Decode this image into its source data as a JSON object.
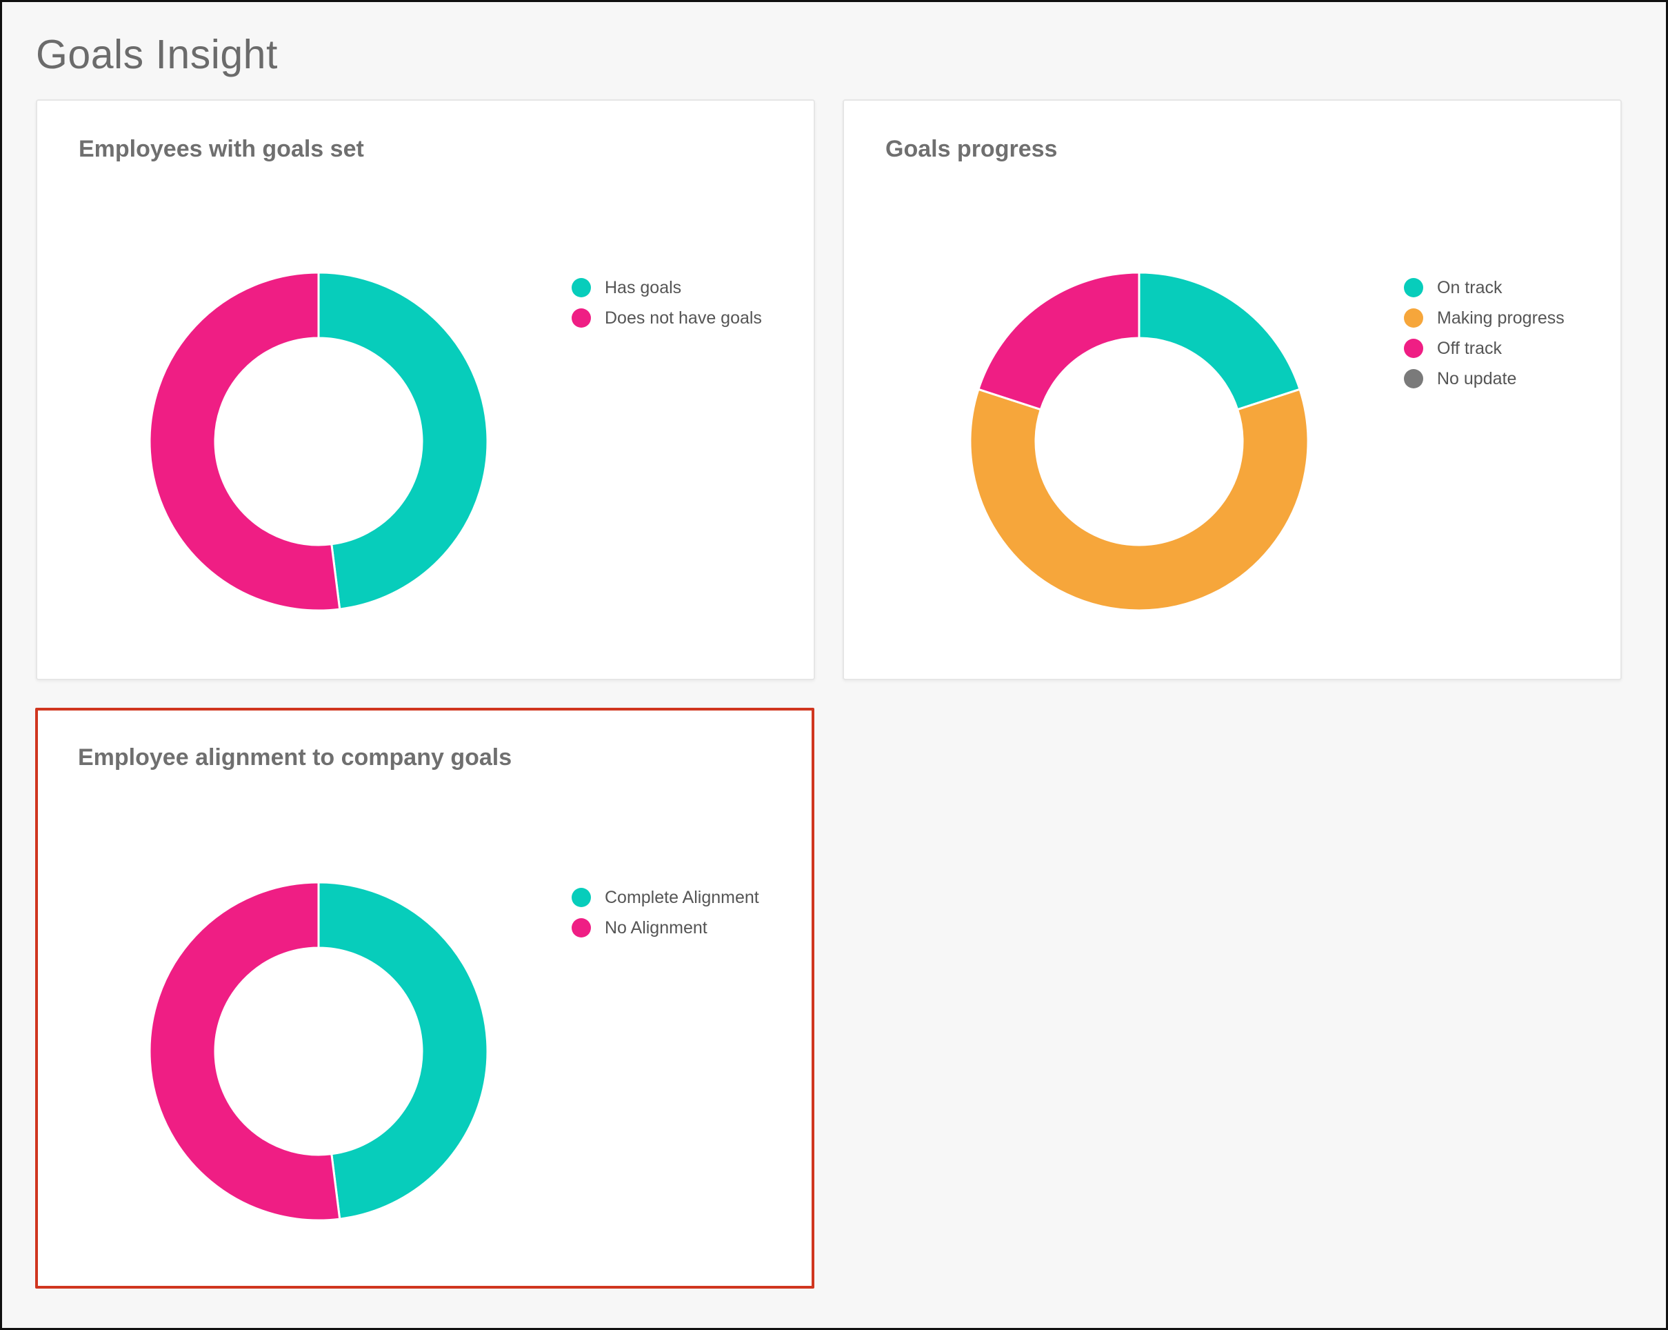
{
  "page": {
    "title": "Goals Insight"
  },
  "colors": {
    "teal": "#07cdbb",
    "pink": "#ef1e84",
    "orange": "#f6a63b",
    "gray": "#7a7a7a",
    "highlight_border": "#d0361f"
  },
  "cards": [
    {
      "title": "Employees with goals set",
      "highlighted": false,
      "legend": [
        {
          "label": "Has goals",
          "color": "#07cdbb",
          "icon": "legend-dot"
        },
        {
          "label": "Does not have goals",
          "color": "#ef1e84",
          "icon": "legend-dot"
        }
      ]
    },
    {
      "title": "Goals progress",
      "highlighted": false,
      "legend": [
        {
          "label": "On track",
          "color": "#07cdbb",
          "icon": "legend-dot"
        },
        {
          "label": "Making progress",
          "color": "#f6a63b",
          "icon": "legend-dot"
        },
        {
          "label": "Off track",
          "color": "#ef1e84",
          "icon": "legend-dot"
        },
        {
          "label": "No update",
          "color": "#7a7a7a",
          "icon": "legend-dot"
        }
      ]
    },
    {
      "title": "Employee alignment to company goals",
      "highlighted": true,
      "legend": [
        {
          "label": "Complete Alignment",
          "color": "#07cdbb",
          "icon": "legend-dot"
        },
        {
          "label": "No Alignment",
          "color": "#ef1e84",
          "icon": "legend-dot"
        }
      ]
    }
  ],
  "chart_data": [
    {
      "type": "pie",
      "variant": "donut",
      "title": "Employees with goals set",
      "categories": [
        "Has goals",
        "Does not have goals"
      ],
      "values": [
        48,
        52
      ],
      "colors": [
        "#07cdbb",
        "#ef1e84"
      ],
      "legend": "right"
    },
    {
      "type": "pie",
      "variant": "donut",
      "title": "Goals progress",
      "categories": [
        "On track",
        "Making progress",
        "Off track",
        "No update"
      ],
      "values": [
        20,
        60,
        20,
        0
      ],
      "colors": [
        "#07cdbb",
        "#f6a63b",
        "#ef1e84",
        "#7a7a7a"
      ],
      "legend": "right"
    },
    {
      "type": "pie",
      "variant": "donut",
      "title": "Employee alignment to company goals",
      "categories": [
        "Complete Alignment",
        "No Alignment"
      ],
      "values": [
        48,
        52
      ],
      "colors": [
        "#07cdbb",
        "#ef1e84"
      ],
      "legend": "right"
    }
  ]
}
